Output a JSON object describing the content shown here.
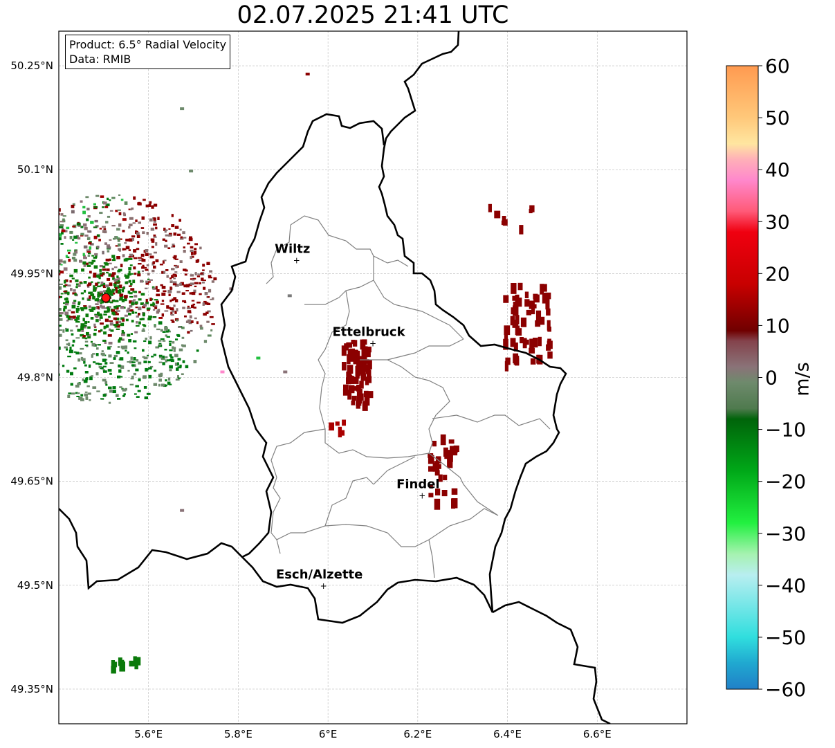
{
  "title": "02.07.2025 21:41 UTC",
  "info": {
    "product": "Product: 6.5° Radial Velocity",
    "source": "Data: RMIB"
  },
  "map": {
    "lon_range": [
      5.4,
      6.8
    ],
    "lat_range": [
      49.3,
      50.3
    ],
    "lon_ticks": [
      {
        "value": 5.6,
        "label": "5.6°E"
      },
      {
        "value": 5.8,
        "label": "5.8°E"
      },
      {
        "value": 6.0,
        "label": "6°E"
      },
      {
        "value": 6.2,
        "label": "6.2°E"
      },
      {
        "value": 6.4,
        "label": "6.4°E"
      },
      {
        "value": 6.6,
        "label": "6.6°E"
      }
    ],
    "lat_ticks": [
      {
        "value": 50.25,
        "label": "50.25°N"
      },
      {
        "value": 50.1,
        "label": "50.1°N"
      },
      {
        "value": 49.95,
        "label": "49.95°N"
      },
      {
        "value": 49.8,
        "label": "49.8°N"
      },
      {
        "value": 49.65,
        "label": "49.65°N"
      },
      {
        "value": 49.5,
        "label": "49.5°N"
      },
      {
        "value": 49.35,
        "label": "49.35°N"
      }
    ],
    "grid": true,
    "cities": [
      {
        "name": "Wiltz",
        "lon": 5.93,
        "lat": 49.97
      },
      {
        "name": "Ettelbruck",
        "lon": 6.1,
        "lat": 49.85
      },
      {
        "name": "Findel",
        "lon": 6.21,
        "lat": 49.63
      },
      {
        "name": "Esch/Alzette",
        "lon": 5.99,
        "lat": 49.5
      }
    ],
    "radar_site": {
      "lon": 5.505,
      "lat": 49.915,
      "color": "#ff1010"
    },
    "echo_clusters": [
      {
        "lon": 6.06,
        "lat": 49.81,
        "spread_lon": 0.03,
        "spread_lat": 0.05,
        "count": 70,
        "color": "#8b0000"
      },
      {
        "lon": 6.44,
        "lat": 49.88,
        "spread_lon": 0.05,
        "spread_lat": 0.06,
        "count": 60,
        "color": "#8b0000"
      },
      {
        "lon": 6.25,
        "lat": 49.67,
        "spread_lon": 0.03,
        "spread_lat": 0.05,
        "count": 30,
        "color": "#8b0000"
      },
      {
        "lon": 6.4,
        "lat": 50.04,
        "spread_lon": 0.05,
        "spread_lat": 0.02,
        "count": 8,
        "color": "#8b0000"
      },
      {
        "lon": 6.02,
        "lat": 49.73,
        "spread_lon": 0.02,
        "spread_lat": 0.01,
        "count": 5,
        "color": "#aa0000"
      },
      {
        "lon": 5.54,
        "lat": 49.39,
        "spread_lon": 0.03,
        "spread_lat": 0.008,
        "count": 12,
        "color": "#0a7a0a"
      }
    ]
  },
  "colorbar": {
    "label": "m/s",
    "min": -60,
    "max": 60,
    "ticks": [
      {
        "value": 60,
        "label": "60"
      },
      {
        "value": 50,
        "label": "50"
      },
      {
        "value": 40,
        "label": "40"
      },
      {
        "value": 30,
        "label": "30"
      },
      {
        "value": 20,
        "label": "20"
      },
      {
        "value": 10,
        "label": "10"
      },
      {
        "value": 0,
        "label": "0"
      },
      {
        "value": -10,
        "label": "−10"
      },
      {
        "value": -20,
        "label": "−20"
      },
      {
        "value": -30,
        "label": "−30"
      },
      {
        "value": -40,
        "label": "−40"
      },
      {
        "value": -50,
        "label": "−50"
      },
      {
        "value": -60,
        "label": "−60"
      }
    ],
    "stops": [
      {
        "value": 60,
        "color": "#ff9a50"
      },
      {
        "value": 50,
        "color": "#ffc87a"
      },
      {
        "value": 45,
        "color": "#ffe6a0"
      },
      {
        "value": 42,
        "color": "#ffb0b8"
      },
      {
        "value": 38,
        "color": "#ff88cc"
      },
      {
        "value": 32,
        "color": "#ff5a78"
      },
      {
        "value": 28,
        "color": "#f00010"
      },
      {
        "value": 18,
        "color": "#c80000"
      },
      {
        "value": 9,
        "color": "#700000"
      },
      {
        "value": 7,
        "color": "#84434c"
      },
      {
        "value": 2,
        "color": "#8a7378"
      },
      {
        "value": -1,
        "color": "#6e8a6c"
      },
      {
        "value": -6,
        "color": "#4f7a4e"
      },
      {
        "value": -8,
        "color": "#00640a"
      },
      {
        "value": -18,
        "color": "#00a818"
      },
      {
        "value": -28,
        "color": "#22f040"
      },
      {
        "value": -34,
        "color": "#a6f2b0"
      },
      {
        "value": -38,
        "color": "#b8eef0"
      },
      {
        "value": -50,
        "color": "#30dede"
      },
      {
        "value": -55,
        "color": "#20a8d0"
      },
      {
        "value": -60,
        "color": "#2080c8"
      }
    ]
  }
}
